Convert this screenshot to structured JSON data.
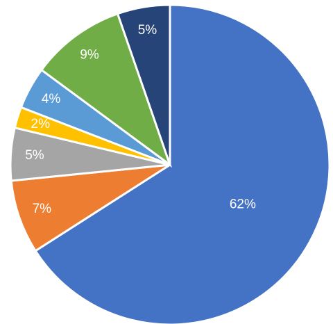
{
  "chart_data": {
    "type": "pie",
    "values": [
      62,
      7,
      5,
      2,
      4,
      9,
      5
    ],
    "value_labels": [
      "62%",
      "7%",
      "5%",
      "2%",
      "4%",
      "9%",
      "5%"
    ],
    "colors": [
      "#4472c4",
      "#ed7d31",
      "#a5a5a5",
      "#ffc000",
      "#5b9bd5",
      "#70ad47",
      "#264478"
    ]
  }
}
